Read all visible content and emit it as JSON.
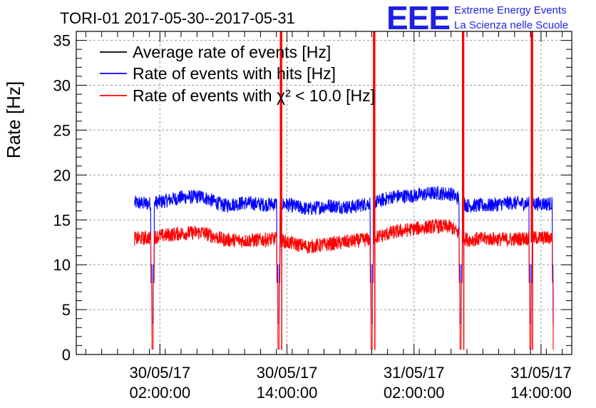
{
  "title": "TORI-01 2017-05-30--2017-05-31",
  "logo": {
    "mark": "EEE",
    "line1": "Extreme Energy Events",
    "line2": "La Scienza nelle Scuole",
    "color": "#1f1fe6"
  },
  "chart_data": {
    "type": "line",
    "ylabel": "Rate [Hz]",
    "ylim": [
      0,
      36
    ],
    "yticks": [
      0,
      5,
      10,
      15,
      20,
      25,
      30,
      35
    ],
    "grid": true,
    "legend_placement": "top-left",
    "x_tick_labels": [
      [
        "30/05/17",
        "02:00:00"
      ],
      [
        "30/05/17",
        "14:00:00"
      ],
      [
        "31/05/17",
        "02:00:00"
      ],
      [
        "31/05/17",
        "14:00:00"
      ]
    ],
    "x_hours": [
      2,
      14,
      26,
      38
    ],
    "x_range_hours": [
      -5.9,
      40.9
    ],
    "data_range_hours": [
      -0.4,
      39.2
    ],
    "gaps_hours": [
      1.3,
      13.2,
      22.0,
      30.4,
      37.0,
      39.2
    ],
    "series": [
      {
        "name": "Average rate of events [Hz]",
        "color": "#000000",
        "x_hours": [],
        "values": []
      },
      {
        "name": "Rate of events with hits [Hz]",
        "color": "#0000ff",
        "x_hours": [
          -0.4,
          1.0,
          2.0,
          4.0,
          6.0,
          8.0,
          10.0,
          12.0,
          13.0,
          14.0,
          16.0,
          18.0,
          20.0,
          21.5,
          22.5,
          24.0,
          26.0,
          28.0,
          29.5,
          30.3,
          31.0,
          33.0,
          35.0,
          37.0,
          39.0
        ],
        "values": [
          16.9,
          16.8,
          17.0,
          17.5,
          17.6,
          16.6,
          16.9,
          16.7,
          16.8,
          16.7,
          16.2,
          16.6,
          16.4,
          16.8,
          17.0,
          17.6,
          17.7,
          18.0,
          17.9,
          17.3,
          16.6,
          16.6,
          16.9,
          16.8,
          16.8
        ],
        "noise": 0.8
      },
      {
        "name": "Rate of events with χ² < 10.0 [Hz]",
        "color": "#ff0000",
        "x_hours": [
          -0.4,
          1.0,
          2.0,
          4.0,
          6.0,
          8.0,
          10.0,
          12.0,
          13.0,
          14.0,
          16.0,
          18.0,
          20.0,
          21.5,
          22.5,
          24.0,
          26.0,
          28.0,
          29.5,
          30.3,
          31.0,
          33.0,
          35.0,
          37.0,
          39.0
        ],
        "values": [
          12.9,
          13.0,
          13.2,
          13.5,
          13.6,
          12.8,
          12.7,
          12.8,
          12.9,
          12.5,
          12.0,
          12.3,
          12.6,
          12.8,
          13.1,
          13.6,
          14.0,
          14.3,
          14.2,
          13.4,
          12.8,
          12.9,
          12.8,
          13.0,
          13.0
        ],
        "noise": 0.8
      }
    ],
    "spike_hours": [
      13.4,
      22.2,
      30.6,
      37.1
    ]
  }
}
